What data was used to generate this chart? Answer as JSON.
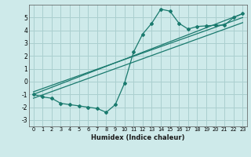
{
  "title": "",
  "xlabel": "Humidex (Indice chaleur)",
  "bg_color": "#ceeaea",
  "grid_color": "#aacfcf",
  "line_color": "#1a7a6e",
  "xlim": [
    -0.5,
    23.5
  ],
  "ylim": [
    -3.5,
    6.0
  ],
  "yticks": [
    -3,
    -2,
    -1,
    0,
    1,
    2,
    3,
    4,
    5
  ],
  "xticks": [
    0,
    1,
    2,
    3,
    4,
    5,
    6,
    7,
    8,
    9,
    10,
    11,
    12,
    13,
    14,
    15,
    16,
    17,
    18,
    19,
    20,
    21,
    22,
    23
  ],
  "curve1_x": [
    0,
    1,
    2,
    3,
    4,
    5,
    6,
    7,
    8,
    9,
    10,
    11,
    12,
    13,
    14,
    15,
    16,
    17,
    18,
    19,
    20,
    21,
    22,
    23
  ],
  "curve1_y": [
    -1.0,
    -1.2,
    -1.3,
    -1.7,
    -1.8,
    -1.9,
    -2.0,
    -2.1,
    -2.4,
    -1.8,
    -0.15,
    2.3,
    3.7,
    4.55,
    5.65,
    5.5,
    4.55,
    4.1,
    4.3,
    4.35,
    4.4,
    4.4,
    5.0,
    5.3
  ],
  "line1_x": [
    0,
    23
  ],
  "line1_y": [
    -1.0,
    5.3
  ],
  "line2_x": [
    0,
    23
  ],
  "line2_y": [
    -0.8,
    5.0
  ],
  "line3_x": [
    0,
    23
  ],
  "line3_y": [
    -1.3,
    4.6
  ]
}
